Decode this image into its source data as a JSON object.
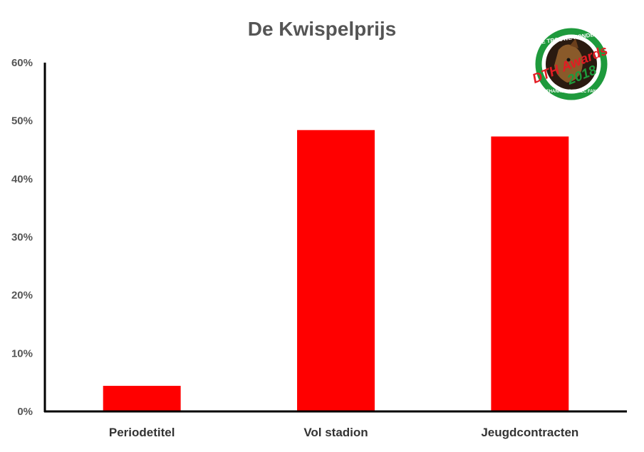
{
  "chart_data": {
    "type": "bar",
    "title": "De Kwispelprijs",
    "xlabel": "",
    "ylabel": "",
    "categories": [
      "Periodetitel",
      "Vol stadion",
      "Jeugdcontracten"
    ],
    "values": [
      4.4,
      48.4,
      47.3
    ],
    "ylim": [
      0,
      60
    ],
    "yticks": [
      "0%",
      "10%",
      "20%",
      "30%",
      "40%",
      "50%",
      "60%"
    ],
    "grid": false,
    "bar_color": "#ff0000"
  },
  "logo": {
    "top_text": "DE TROUWE HONDEN",
    "script_text": "DTH Awards",
    "year": "2018",
    "bottom_text": "ONAFHANKELIJKE NEC FANSITE",
    "colors": {
      "green": "#1e9a3c",
      "red": "#e31b23",
      "black": "#111111"
    }
  }
}
